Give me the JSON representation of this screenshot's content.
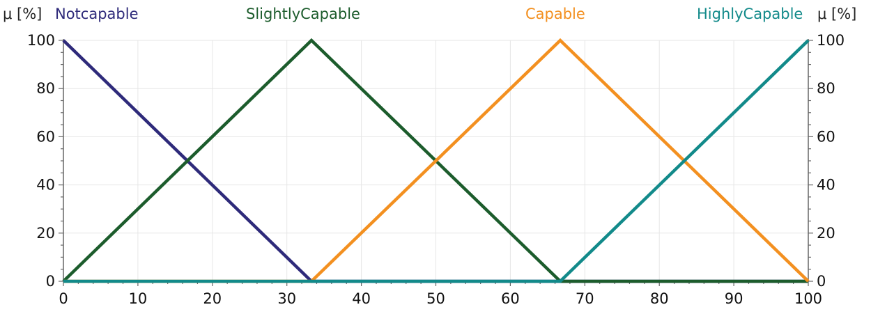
{
  "chart_data": {
    "type": "line",
    "y_label_left": "μ [%]",
    "y_label_right": "μ [%]",
    "xlim": [
      0,
      100
    ],
    "ylim": [
      0,
      100
    ],
    "x_ticks": [
      0,
      10,
      20,
      30,
      40,
      50,
      60,
      70,
      80,
      90,
      100
    ],
    "y_ticks": [
      0,
      20,
      40,
      60,
      80,
      100
    ],
    "grid": true,
    "legend_position": "top",
    "series": [
      {
        "name": "Notcapable",
        "color": "#2e2a7a",
        "x": [
          0,
          33.3,
          100
        ],
        "y": [
          100,
          0,
          0
        ]
      },
      {
        "name": "SlightlyCapable",
        "color": "#1c5c2c",
        "x": [
          0,
          33.3,
          66.7,
          100
        ],
        "y": [
          0,
          100,
          0,
          0
        ]
      },
      {
        "name": "Capable",
        "color": "#f39020",
        "x": [
          0,
          33.3,
          66.7,
          100
        ],
        "y": [
          0,
          0,
          100,
          0
        ]
      },
      {
        "name": "HighlyCapable",
        "color": "#128a8a",
        "x": [
          0,
          66.7,
          100
        ],
        "y": [
          0,
          0,
          100
        ]
      }
    ]
  }
}
